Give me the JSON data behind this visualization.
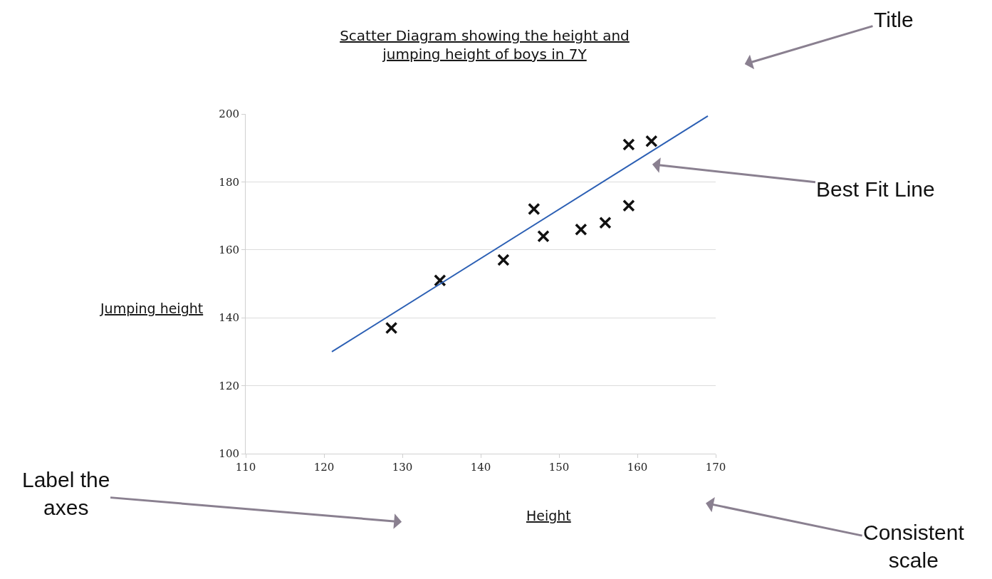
{
  "chart_data": {
    "type": "scatter",
    "title": "Scatter Diagram showing the height and\njumping height of boys in 7Y",
    "xlabel": "Height",
    "ylabel": "Jumping height",
    "annotations": [
      "Title",
      "Best Fit Line",
      "Label the\naxes",
      "Consistent\nscale"
    ],
    "xlim": [
      110,
      170
    ],
    "xticks": [
      110,
      120,
      130,
      140,
      150,
      160,
      170
    ],
    "ylim": [
      100,
      200
    ],
    "yticks": [
      100,
      120,
      140,
      160,
      180,
      200
    ],
    "grid": "y",
    "series": [
      {
        "marker": "cross",
        "color": "#111111",
        "x": [
          128.6,
          134.8,
          142.9,
          146.8,
          148,
          152.8,
          155.9,
          158.9,
          158.9,
          161.8
        ],
        "values": [
          137,
          151,
          157,
          172,
          164,
          166,
          168,
          173,
          191,
          192
        ]
      },
      {
        "type": "line",
        "color": "#2b5fb4",
        "line_style": "solid",
        "x": [
          121,
          169
        ],
        "values": [
          130,
          199.4
        ]
      }
    ]
  }
}
